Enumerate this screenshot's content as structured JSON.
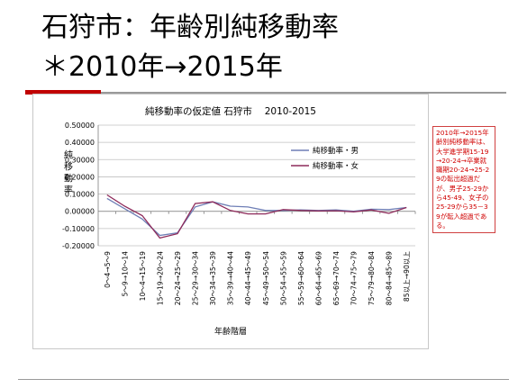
{
  "slide": {
    "title": "石狩市：年齢別純移動率",
    "subtitle": "＊2010年→2015年",
    "note": "2010年→2015年齢別純移動率は、大学進学期15-19→20-24→卒業就職期20-24→25-29の転出超過だが、男子25-29から45-49、女子の25-29から35－39が転入超過である。"
  },
  "chart_data": {
    "type": "line",
    "title": "純移動率の仮定値 石狩市　 2010-2015",
    "xlabel": "年齢階層",
    "ylabel": "純移動率",
    "ylim": [
      -0.2,
      0.5
    ],
    "yticks": [
      0.5,
      0.4,
      0.3,
      0.2,
      0.1,
      0.0,
      -0.1,
      -0.2
    ],
    "ytick_labels": [
      "0.50000",
      "0.40000",
      "0.30000",
      "0.20000",
      "0.10000",
      "0.00000",
      "-0.10000",
      "-0.20000"
    ],
    "grid": true,
    "legend_position": "top-right",
    "categories": [
      "0～4→5～9",
      "5～9→10～14",
      "10～4→15～19",
      "15～19→20～24",
      "20～24→25～29",
      "25～29→30～34",
      "30～34→35～39",
      "35～39→40～44",
      "40～44→45～49",
      "45～49→50～54",
      "50～54→55～59",
      "55～59→60～64",
      "60～64→65～69",
      "65～69→70～74",
      "70～74→75～79",
      "75～79→80～84",
      "80～84→85～89",
      "85以上→90以上"
    ],
    "series": [
      {
        "name": "純移動率・男",
        "color": "#6f7fb6",
        "values": [
          0.075,
          0.015,
          -0.045,
          -0.14,
          -0.125,
          0.025,
          0.055,
          0.03,
          0.025,
          0.005,
          0.005,
          0.008,
          0.005,
          0.008,
          0.0,
          0.012,
          0.01,
          0.022
        ]
      },
      {
        "name": "純移動率・女",
        "color": "#8e2a5a",
        "values": [
          0.095,
          0.03,
          -0.025,
          -0.155,
          -0.13,
          0.045,
          0.055,
          0.005,
          -0.015,
          -0.015,
          0.01,
          0.005,
          0.002,
          0.003,
          -0.003,
          0.008,
          -0.012,
          0.022
        ]
      }
    ]
  }
}
